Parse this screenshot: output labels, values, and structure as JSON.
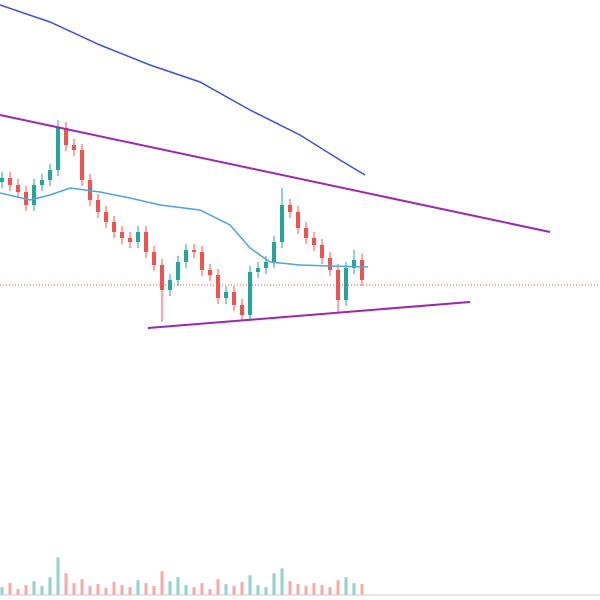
{
  "chart_data": {
    "type": "candlestick",
    "xlim": [
      -0.25,
      74.75
    ],
    "ylim": [
      0,
      600
    ],
    "x": [
      0,
      1,
      2,
      3,
      4,
      5,
      6,
      7,
      8,
      9,
      10,
      11,
      12,
      13,
      14,
      15,
      16,
      17,
      18,
      19,
      20,
      21,
      22,
      23,
      24,
      25,
      26,
      27,
      28,
      29,
      30,
      31,
      32,
      33,
      34,
      35,
      36,
      37,
      38,
      39,
      40,
      41,
      42,
      43,
      44,
      45
    ],
    "open": [
      418,
      422,
      415,
      408,
      395,
      415,
      420,
      430,
      472,
      455,
      450,
      420,
      400,
      388,
      378,
      368,
      362,
      358,
      368,
      348,
      335,
      310,
      320,
      338,
      350,
      348,
      330,
      325,
      302,
      308,
      295,
      285,
      328,
      332,
      338,
      358,
      395,
      388,
      372,
      362,
      355,
      342,
      330,
      300,
      332,
      340
    ],
    "high": [
      428,
      428,
      421,
      414,
      421,
      426,
      436,
      480,
      478,
      461,
      456,
      426,
      406,
      394,
      384,
      374,
      368,
      374,
      374,
      354,
      341,
      326,
      344,
      356,
      356,
      354,
      336,
      331,
      314,
      314,
      301,
      334,
      338,
      344,
      364,
      412,
      401,
      394,
      378,
      368,
      361,
      348,
      336,
      338,
      350,
      346
    ],
    "low": [
      412,
      409,
      402,
      389,
      389,
      409,
      414,
      424,
      449,
      444,
      414,
      394,
      382,
      372,
      362,
      356,
      352,
      352,
      342,
      329,
      278,
      304,
      314,
      332,
      342,
      324,
      319,
      296,
      296,
      289,
      279,
      279,
      322,
      326,
      332,
      352,
      382,
      366,
      356,
      349,
      336,
      324,
      288,
      294,
      326,
      314
    ],
    "close": [
      422,
      415,
      408,
      395,
      415,
      420,
      430,
      472,
      455,
      450,
      420,
      400,
      388,
      378,
      368,
      362,
      358,
      368,
      348,
      335,
      310,
      320,
      338,
      350,
      348,
      330,
      325,
      302,
      308,
      295,
      285,
      328,
      332,
      338,
      358,
      395,
      388,
      372,
      362,
      355,
      342,
      330,
      300,
      332,
      340,
      320
    ],
    "up_color": "#26a69a",
    "down_color": "#ef5350",
    "volume": [
      8,
      12,
      6,
      10,
      14,
      9,
      18,
      38,
      22,
      12,
      16,
      9,
      11,
      7,
      13,
      10,
      8,
      15,
      12,
      9,
      24,
      14,
      18,
      10,
      8,
      12,
      6,
      16,
      11,
      9,
      13,
      20,
      10,
      8,
      22,
      27,
      14,
      11,
      9,
      12,
      10,
      8,
      15,
      18,
      12,
      11
    ],
    "volume_ylim": [
      0,
      600
    ],
    "lines": [
      {
        "name": "ma-long",
        "color": "#3f51d6",
        "x": [
          -0.25,
          6,
          12.25,
          18.5,
          24.75,
          31,
          37.25,
          42.25,
          45.375
        ],
        "values": [
          595,
          578,
          555,
          535,
          518,
          490,
          465,
          440,
          425
        ]
      },
      {
        "name": "ma-short",
        "color": "#4fa3e0",
        "x": [
          -0.25,
          3.5,
          6,
          8.5,
          12.25,
          16,
          19.75,
          24.75,
          28.5,
          31,
          33.5,
          37.25,
          41,
          45.75
        ],
        "values": [
          407,
          400,
          405,
          412,
          408,
          402,
          395,
          390,
          375,
          352,
          338,
          335,
          334,
          333
        ]
      },
      {
        "name": "trend-upper",
        "color": "#9c27b0",
        "x": [
          -0.25,
          68.5
        ],
        "values": [
          485,
          368
        ]
      },
      {
        "name": "trend-lower",
        "color": "#9c27b0",
        "x": [
          18.25,
          58.5
        ],
        "values": [
          272,
          298
        ]
      }
    ],
    "price_line": 315,
    "price_line_color": "#ef5350"
  }
}
